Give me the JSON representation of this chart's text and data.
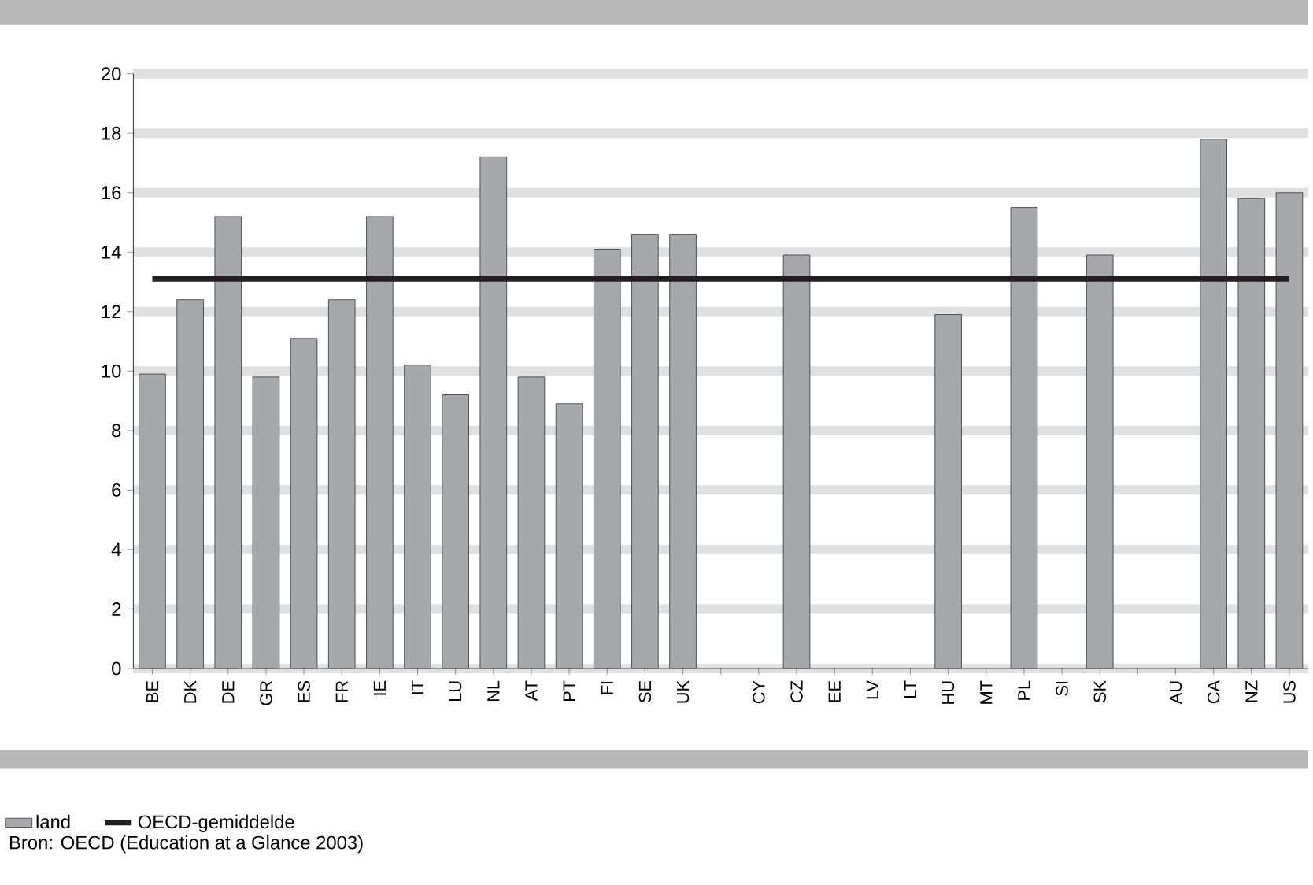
{
  "chart_data": {
    "type": "bar",
    "categories": [
      "BE",
      "DK",
      "DE",
      "GR",
      "ES",
      "FR",
      "IE",
      "IT",
      "LU",
      "NL",
      "AT",
      "PT",
      "FI",
      "SE",
      "UK",
      null,
      "CY",
      "CZ",
      "EE",
      "LV",
      "LT",
      "HU",
      "MT",
      "PL",
      "SI",
      "SK",
      null,
      "AU",
      "CA",
      "NZ",
      "US"
    ],
    "series": [
      {
        "name": "land",
        "color": "#a7a8ab",
        "values": [
          9.9,
          12.4,
          15.2,
          9.8,
          11.1,
          12.4,
          15.2,
          10.2,
          9.2,
          17.2,
          9.8,
          8.9,
          14.1,
          14.6,
          14.6,
          null,
          null,
          13.9,
          null,
          null,
          null,
          11.9,
          null,
          15.5,
          null,
          13.9,
          null,
          null,
          17.8,
          15.8,
          16.0
        ]
      }
    ],
    "ylim": [
      0,
      20
    ],
    "yticks": [
      0,
      2,
      4,
      6,
      8,
      10,
      12,
      14,
      16,
      18,
      20
    ],
    "grid": "y",
    "legend": "bottom left",
    "ref_lines": [
      {
        "axis": "y",
        "value": 13.1,
        "label": "OECD-gemiddelde",
        "color": "#231f20"
      }
    ],
    "annotations": [
      "Bron: OECD (Education at a Glance 2003)"
    ]
  }
}
